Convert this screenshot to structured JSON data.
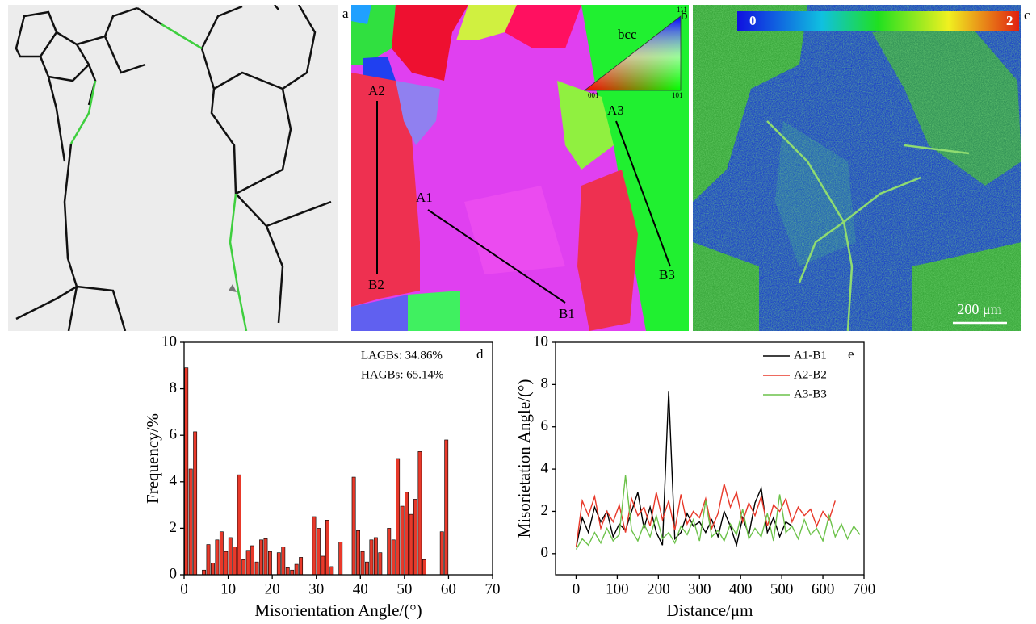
{
  "panels": {
    "a": {
      "label": "a"
    },
    "b": {
      "label": "b",
      "legend_title": "bcc",
      "corners": [
        "001",
        "101",
        "111"
      ],
      "lines": [
        {
          "start": "A1",
          "end": "B1"
        },
        {
          "start": "A2",
          "end": "B2"
        },
        {
          "start": "A3",
          "end": "B3"
        }
      ]
    },
    "c": {
      "label": "c",
      "colorbar": [
        "0",
        "2"
      ],
      "scale_bar": "200 μm"
    }
  },
  "chart_data": [
    {
      "type": "histogram",
      "panel_label": "d",
      "xlabel": "Misorientation Angle/(°)",
      "ylabel": "Frequency/%",
      "annotations": [
        "LAGBs: 34.86%",
        "HAGBs: 65.14%"
      ],
      "color": "#e8392a",
      "bins": [
        0,
        1,
        2,
        3,
        4,
        5,
        6,
        7,
        8,
        9,
        10,
        11,
        12,
        13,
        14,
        15,
        16,
        17,
        18,
        19,
        20,
        21,
        22,
        23,
        24,
        25,
        26,
        27,
        28,
        29,
        30,
        31,
        32,
        33,
        34,
        35,
        36,
        37,
        38,
        39,
        40,
        41,
        42,
        43,
        44,
        45,
        46,
        47,
        48,
        49,
        50,
        51,
        52,
        53,
        54,
        55,
        56,
        57,
        58,
        59,
        60
      ],
      "counts": [
        8.9,
        4.55,
        6.15,
        0,
        0.2,
        1.3,
        0.5,
        1.5,
        1.85,
        1.0,
        1.6,
        1.2,
        4.3,
        0.65,
        1.05,
        1.25,
        0.55,
        1.5,
        1.55,
        1.0,
        0,
        0.95,
        1.2,
        0.3,
        0.2,
        0.45,
        0.75,
        0,
        0,
        2.5,
        2.0,
        0.8,
        2.35,
        0.35,
        0,
        1.4,
        0,
        0,
        4.2,
        1.9,
        1.0,
        0.55,
        1.5,
        1.6,
        0.95,
        0,
        2.0,
        1.5,
        5.0,
        2.95,
        3.55,
        2.6,
        3.25,
        5.3,
        0.65,
        0,
        0,
        0,
        1.85,
        5.8
      ],
      "xlim": [
        0,
        70
      ],
      "xticks": [
        0,
        10,
        20,
        30,
        40,
        50,
        60,
        70
      ],
      "ylim": [
        0,
        10
      ],
      "yticks": [
        0,
        2,
        4,
        6,
        8,
        10
      ]
    },
    {
      "type": "line",
      "panel_label": "e",
      "xlabel": "Distance/μm",
      "ylabel": "Misorietation Angle/(°)",
      "legend": "upper right",
      "xlim": [
        -50,
        700
      ],
      "xticks": [
        0,
        100,
        200,
        300,
        400,
        500,
        600,
        700
      ],
      "ylim": [
        -1,
        10
      ],
      "yticks": [
        0,
        2,
        4,
        6,
        8,
        10
      ],
      "series": [
        {
          "name": "A1-B1",
          "color": "#000000",
          "x": [
            0,
            15,
            30,
            45,
            60,
            75,
            90,
            105,
            120,
            135,
            150,
            165,
            180,
            195,
            210,
            225,
            240,
            255,
            270,
            285,
            300,
            315,
            330,
            345,
            360,
            375,
            390,
            405,
            420,
            435,
            450,
            465,
            480,
            495,
            510,
            525
          ],
          "values": [
            0.3,
            1.7,
            1.0,
            2.2,
            1.5,
            2.0,
            0.8,
            1.4,
            1.1,
            2.0,
            2.9,
            1.2,
            2.2,
            1.0,
            0.4,
            7.7,
            0.7,
            1.0,
            1.9,
            1.3,
            1.5,
            1.0,
            1.6,
            0.8,
            2.0,
            1.3,
            0.4,
            1.7,
            0.9,
            2.4,
            3.1,
            1.0,
            1.7,
            0.8,
            1.5,
            1.3
          ]
        },
        {
          "name": "A2-B2",
          "color": "#e8392a",
          "x": [
            0,
            15,
            30,
            45,
            60,
            75,
            90,
            105,
            120,
            135,
            150,
            165,
            180,
            195,
            210,
            225,
            240,
            255,
            270,
            285,
            300,
            315,
            330,
            345,
            360,
            375,
            390,
            405,
            420,
            435,
            450,
            465,
            480,
            495,
            510,
            525,
            540,
            555,
            570,
            585,
            600,
            615,
            630
          ],
          "values": [
            0.3,
            2.5,
            1.8,
            2.7,
            1.2,
            2.0,
            1.5,
            2.3,
            1.0,
            2.6,
            1.8,
            2.2,
            1.3,
            2.9,
            1.6,
            2.5,
            1.1,
            2.8,
            1.4,
            2.0,
            1.7,
            2.6,
            1.2,
            1.9,
            3.3,
            2.2,
            2.9,
            1.5,
            2.4,
            1.8,
            2.7,
            1.3,
            2.3,
            2.0,
            2.6,
            1.5,
            2.2,
            1.8,
            2.1,
            1.3,
            2.0,
            1.6,
            2.5
          ]
        },
        {
          "name": "A3-B3",
          "color": "#6cc24a",
          "x": [
            0,
            15,
            30,
            45,
            60,
            75,
            90,
            105,
            120,
            135,
            150,
            165,
            180,
            195,
            210,
            225,
            240,
            255,
            270,
            285,
            300,
            315,
            330,
            345,
            360,
            375,
            390,
            405,
            420,
            435,
            450,
            465,
            480,
            495,
            510,
            525,
            540,
            555,
            570,
            585,
            600,
            615,
            630,
            645,
            660,
            675,
            690
          ],
          "values": [
            0.2,
            0.7,
            0.4,
            1.0,
            0.5,
            1.2,
            0.6,
            0.9,
            3.7,
            1.1,
            0.6,
            1.4,
            0.8,
            1.8,
            0.7,
            1.0,
            0.5,
            1.3,
            0.9,
            1.6,
            0.6,
            2.5,
            0.8,
            1.1,
            0.6,
            1.4,
            0.9,
            2.1,
            0.7,
            1.2,
            0.8,
            1.9,
            0.6,
            2.8,
            1.0,
            1.3,
            0.7,
            1.6,
            0.9,
            1.2,
            0.6,
            1.8,
            0.8,
            1.4,
            0.7,
            1.3,
            0.9
          ]
        }
      ]
    }
  ]
}
